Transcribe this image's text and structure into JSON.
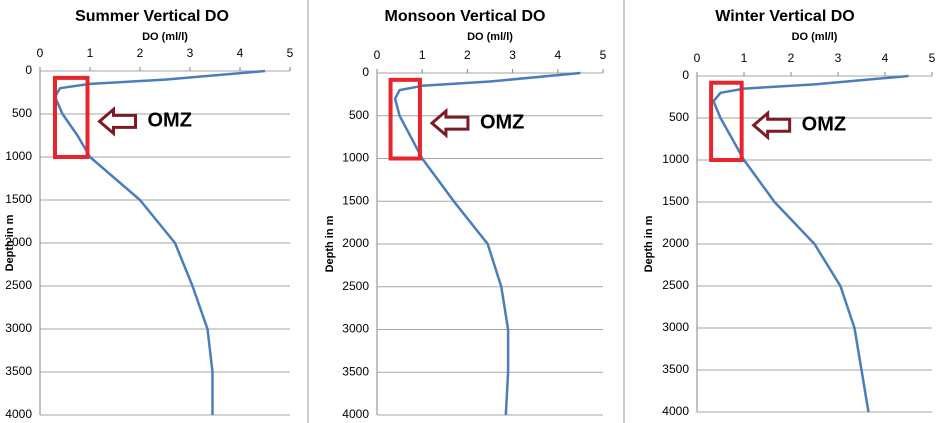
{
  "chart_data": [
    {
      "type": "line",
      "title": "Summer Vertical DO",
      "xlabel": "DO (ml/l)",
      "ylabel": "Depth in m",
      "annotation": "OMZ",
      "xlim": [
        0,
        5
      ],
      "xticks": [
        0,
        1,
        2,
        3,
        4,
        5
      ],
      "ylim": [
        0,
        4000
      ],
      "yticks": [
        0,
        500,
        1000,
        1500,
        2000,
        2500,
        3000,
        3500,
        4000
      ],
      "y_inverted": true,
      "grid": true,
      "series": [
        {
          "color": "#4a7ebb",
          "y": [
            0,
            100,
            150,
            200,
            300,
            500,
            750,
            1000,
            1500,
            2000,
            2500,
            3000,
            3500,
            4000
          ],
          "values": [
            4.5,
            2.5,
            1.0,
            0.4,
            0.3,
            0.45,
            0.75,
            1.0,
            2.0,
            2.7,
            3.05,
            3.35,
            3.45,
            3.45
          ]
        }
      ]
    },
    {
      "type": "line",
      "title": "Monsoon Vertical DO",
      "xlabel": "DO (ml/l)",
      "ylabel": "Depth in m",
      "annotation": "OMZ",
      "xlim": [
        0,
        5
      ],
      "xticks": [
        0,
        1,
        2,
        3,
        4,
        5
      ],
      "ylim": [
        0,
        4000
      ],
      "yticks": [
        0,
        500,
        1000,
        1500,
        2000,
        2500,
        3000,
        3500,
        4000
      ],
      "y_inverted": true,
      "grid": true,
      "series": [
        {
          "color": "#4a7ebb",
          "y": [
            0,
            100,
            150,
            200,
            300,
            500,
            750,
            1000,
            1500,
            2000,
            2500,
            3000,
            3500,
            4000
          ],
          "values": [
            4.5,
            2.5,
            1.0,
            0.5,
            0.4,
            0.5,
            0.75,
            1.0,
            1.7,
            2.45,
            2.75,
            2.9,
            2.9,
            2.85
          ]
        }
      ]
    },
    {
      "type": "line",
      "title": "Winter Vertical DO",
      "xlabel": "DO (ml/l)",
      "ylabel": "Depth in m",
      "annotation": "OMZ",
      "xlim": [
        0,
        5
      ],
      "xticks": [
        0,
        1,
        2,
        3,
        4,
        5
      ],
      "ylim": [
        0,
        4000
      ],
      "yticks": [
        0,
        500,
        1000,
        1500,
        2000,
        2500,
        3000,
        3500,
        4000
      ],
      "y_inverted": true,
      "grid": true,
      "series": [
        {
          "color": "#4a7ebb",
          "y": [
            0,
            100,
            150,
            200,
            300,
            500,
            750,
            1000,
            1500,
            2000,
            2500,
            3000,
            3500,
            4000
          ],
          "values": [
            4.5,
            2.5,
            1.0,
            0.5,
            0.35,
            0.5,
            0.75,
            1.0,
            1.65,
            2.5,
            3.05,
            3.35,
            3.5,
            3.65
          ]
        }
      ]
    }
  ]
}
